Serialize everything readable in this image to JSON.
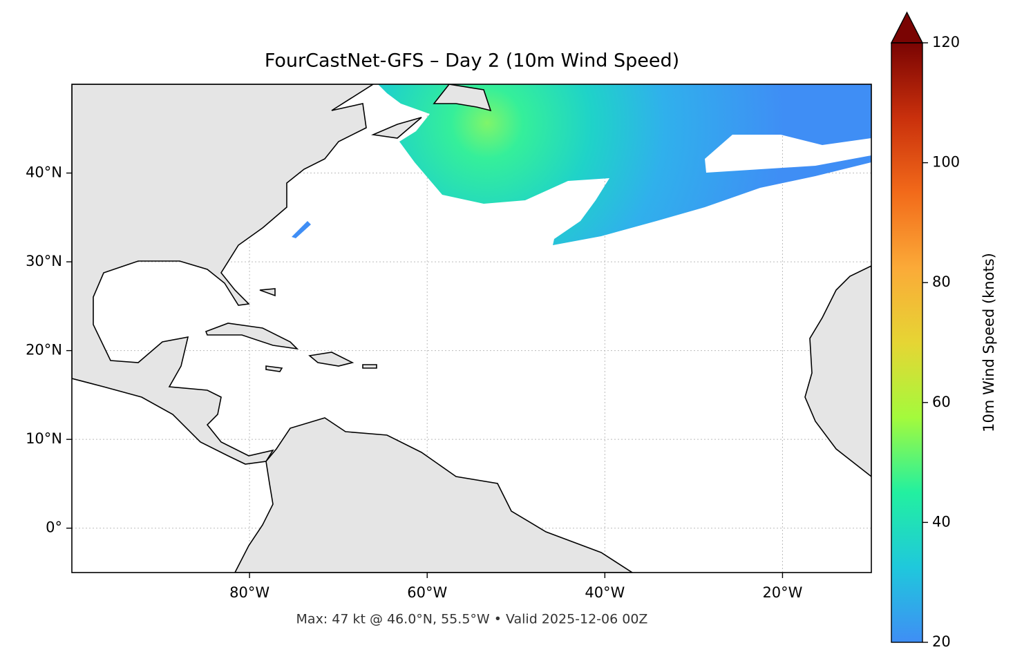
{
  "chart_data": {
    "type": "map",
    "title": "FourCastNet-GFS – Day 2 (10m Wind Speed)",
    "annotation": "Max: 47 kt @ 46.0°N, 55.5°W • Valid 2025-12-06 00Z",
    "xlim": [
      -100,
      -10
    ],
    "ylim": [
      -5,
      50
    ],
    "xticks": [
      {
        "value": -80,
        "label": "80°W"
      },
      {
        "value": -60,
        "label": "60°W"
      },
      {
        "value": -40,
        "label": "40°W"
      },
      {
        "value": -20,
        "label": "20°W"
      }
    ],
    "yticks": [
      {
        "value": 0,
        "label": "0°"
      },
      {
        "value": 10,
        "label": "10°N"
      },
      {
        "value": 20,
        "label": "20°N"
      },
      {
        "value": 30,
        "label": "30°N"
      },
      {
        "value": 40,
        "label": "40°N"
      }
    ],
    "grid": true,
    "colorbar": {
      "label": "10m Wind Speed (knots)",
      "lim": [
        20,
        120
      ],
      "ticks": [
        20,
        40,
        60,
        80,
        100,
        120
      ],
      "colormap": [
        "#3f8ef5",
        "#1fc8dc",
        "#22f0a0",
        "#a4fa3c",
        "#e6d534",
        "#fbaa38",
        "#f26a1a",
        "#c9300c",
        "#7a0403"
      ]
    }
  }
}
